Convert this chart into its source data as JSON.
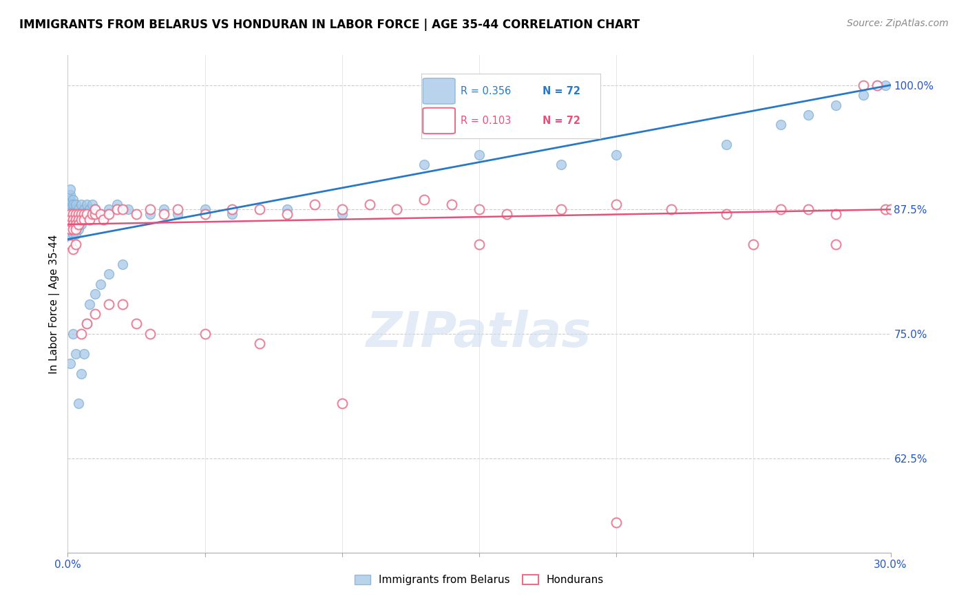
{
  "title": "IMMIGRANTS FROM BELARUS VS HONDURAN IN LABOR FORCE | AGE 35-44 CORRELATION CHART",
  "source": "Source: ZipAtlas.com",
  "ylabel": "In Labor Force | Age 35-44",
  "xlim": [
    0.0,
    0.3
  ],
  "ylim": [
    0.53,
    1.03
  ],
  "xtick_positions": [
    0.0,
    0.05,
    0.1,
    0.15,
    0.2,
    0.25,
    0.3
  ],
  "xticklabels": [
    "0.0%",
    "",
    "",
    "",
    "",
    "",
    "30.0%"
  ],
  "yticks_right": [
    0.625,
    0.75,
    0.875,
    1.0
  ],
  "ytick_labels_right": [
    "62.5%",
    "75.0%",
    "87.5%",
    "100.0%"
  ],
  "belarus_color_fill": "#a8c8e8",
  "belarus_color_edge": "#7ab0d4",
  "honduran_color": "#f4a0b0",
  "honduran_edge": "#e8708a",
  "blue_line_color": "#2878c8",
  "pink_line_color": "#e8507a",
  "watermark_color": "#d0dff0",
  "legend_box_color": "#dddddd",
  "blue_text_color": "#2878c8",
  "pink_text_color": "#e8507a",
  "belarus_x": [
    0.001,
    0.001,
    0.001,
    0.001,
    0.001,
    0.001,
    0.001,
    0.001,
    0.001,
    0.001,
    0.002,
    0.002,
    0.002,
    0.002,
    0.002,
    0.002,
    0.002,
    0.002,
    0.003,
    0.003,
    0.003,
    0.003,
    0.003,
    0.003,
    0.004,
    0.004,
    0.004,
    0.004,
    0.005,
    0.005,
    0.005,
    0.006,
    0.006,
    0.007,
    0.007,
    0.008,
    0.009,
    0.01,
    0.012,
    0.015,
    0.018,
    0.022,
    0.03,
    0.035,
    0.04,
    0.05,
    0.06,
    0.08,
    0.1,
    0.13,
    0.15,
    0.18,
    0.2,
    0.24,
    0.26,
    0.27,
    0.28,
    0.29,
    0.295,
    0.298,
    0.001,
    0.002,
    0.003,
    0.004,
    0.005,
    0.006,
    0.007,
    0.008,
    0.01,
    0.012,
    0.015,
    0.02
  ],
  "belarus_y": [
    0.88,
    0.875,
    0.87,
    0.865,
    0.86,
    0.885,
    0.89,
    0.855,
    0.85,
    0.895,
    0.875,
    0.87,
    0.865,
    0.86,
    0.855,
    0.885,
    0.88,
    0.85,
    0.875,
    0.87,
    0.865,
    0.86,
    0.88,
    0.85,
    0.875,
    0.87,
    0.865,
    0.855,
    0.88,
    0.87,
    0.86,
    0.875,
    0.865,
    0.88,
    0.87,
    0.875,
    0.88,
    0.875,
    0.87,
    0.875,
    0.88,
    0.875,
    0.87,
    0.875,
    0.87,
    0.875,
    0.87,
    0.875,
    0.87,
    0.92,
    0.93,
    0.92,
    0.93,
    0.94,
    0.96,
    0.97,
    0.98,
    0.99,
    1.0,
    1.0,
    0.72,
    0.75,
    0.73,
    0.68,
    0.71,
    0.73,
    0.76,
    0.78,
    0.79,
    0.8,
    0.81,
    0.82
  ],
  "honduran_x": [
    0.001,
    0.001,
    0.001,
    0.001,
    0.002,
    0.002,
    0.002,
    0.002,
    0.003,
    0.003,
    0.003,
    0.003,
    0.004,
    0.004,
    0.004,
    0.005,
    0.005,
    0.006,
    0.006,
    0.007,
    0.008,
    0.009,
    0.01,
    0.01,
    0.012,
    0.013,
    0.015,
    0.018,
    0.02,
    0.025,
    0.03,
    0.035,
    0.04,
    0.05,
    0.06,
    0.07,
    0.08,
    0.09,
    0.1,
    0.11,
    0.12,
    0.13,
    0.14,
    0.15,
    0.16,
    0.18,
    0.2,
    0.22,
    0.24,
    0.26,
    0.27,
    0.28,
    0.29,
    0.295,
    0.298,
    0.3,
    0.001,
    0.002,
    0.003,
    0.005,
    0.007,
    0.01,
    0.015,
    0.02,
    0.025,
    0.03,
    0.05,
    0.07,
    0.1,
    0.15,
    0.2,
    0.25,
    0.28
  ],
  "honduran_y": [
    0.87,
    0.865,
    0.86,
    0.855,
    0.87,
    0.865,
    0.86,
    0.855,
    0.87,
    0.865,
    0.86,
    0.855,
    0.87,
    0.865,
    0.86,
    0.87,
    0.865,
    0.87,
    0.865,
    0.87,
    0.865,
    0.87,
    0.87,
    0.875,
    0.87,
    0.865,
    0.87,
    0.875,
    0.875,
    0.87,
    0.875,
    0.87,
    0.875,
    0.87,
    0.875,
    0.875,
    0.87,
    0.88,
    0.875,
    0.88,
    0.875,
    0.885,
    0.88,
    0.875,
    0.87,
    0.875,
    0.88,
    0.875,
    0.87,
    0.875,
    0.875,
    0.87,
    1.0,
    1.0,
    0.875,
    0.875,
    0.84,
    0.835,
    0.84,
    0.75,
    0.76,
    0.77,
    0.78,
    0.78,
    0.76,
    0.75,
    0.75,
    0.74,
    0.68,
    0.84,
    0.56,
    0.84,
    0.84
  ],
  "blue_line_x0": 0.0,
  "blue_line_x1": 0.3,
  "blue_line_y0": 0.845,
  "blue_line_y1": 1.0,
  "pink_line_x0": 0.0,
  "pink_line_x1": 0.3,
  "pink_line_y0": 0.86,
  "pink_line_y1": 0.875
}
